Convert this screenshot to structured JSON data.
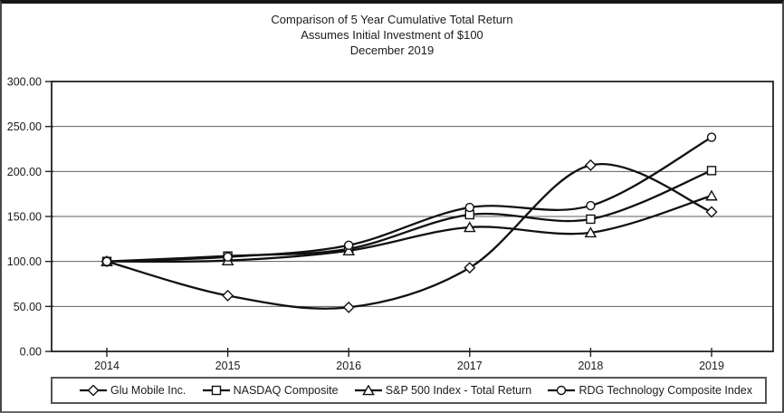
{
  "colors": {
    "background": "#ffffff",
    "line": "#111111",
    "grid": "#5f5f5f",
    "frame": "#222222",
    "marker_fill": "#ffffff",
    "text": "#1b1b1b"
  },
  "chart_data": {
    "type": "line",
    "title": "Comparison of 5 Year Cumulative Total Return",
    "subtitle": "Assumes Initial Investment of $100",
    "date_line": "December 2019",
    "xlabel": "",
    "ylabel": "",
    "categories": [
      "2014",
      "2015",
      "2016",
      "2017",
      "2018",
      "2019"
    ],
    "series": [
      {
        "name": "Glu Mobile Inc.",
        "marker": "diamond",
        "values": [
          100,
          62,
          49,
          93,
          207,
          155
        ]
      },
      {
        "name": "NASDAQ Composite",
        "marker": "square",
        "values": [
          100,
          106,
          114,
          152,
          147,
          201
        ]
      },
      {
        "name": "S&P 500 Index - Total Return",
        "marker": "triangle",
        "values": [
          100,
          101,
          112,
          138,
          132,
          173
        ]
      },
      {
        "name": "RDG Technology Composite Index",
        "marker": "circle",
        "values": [
          100,
          105,
          118,
          160,
          162,
          238
        ]
      }
    ],
    "ylim": [
      0,
      300
    ],
    "yticks": [
      300,
      250,
      200,
      150,
      100,
      50,
      0
    ],
    "ytick_labels": [
      "300.00",
      "250.00",
      "200.00",
      "150.00",
      "100.00",
      "50.00",
      "0.00"
    ],
    "grid": true,
    "legend_position": "bottom",
    "line_smoothing": true
  }
}
